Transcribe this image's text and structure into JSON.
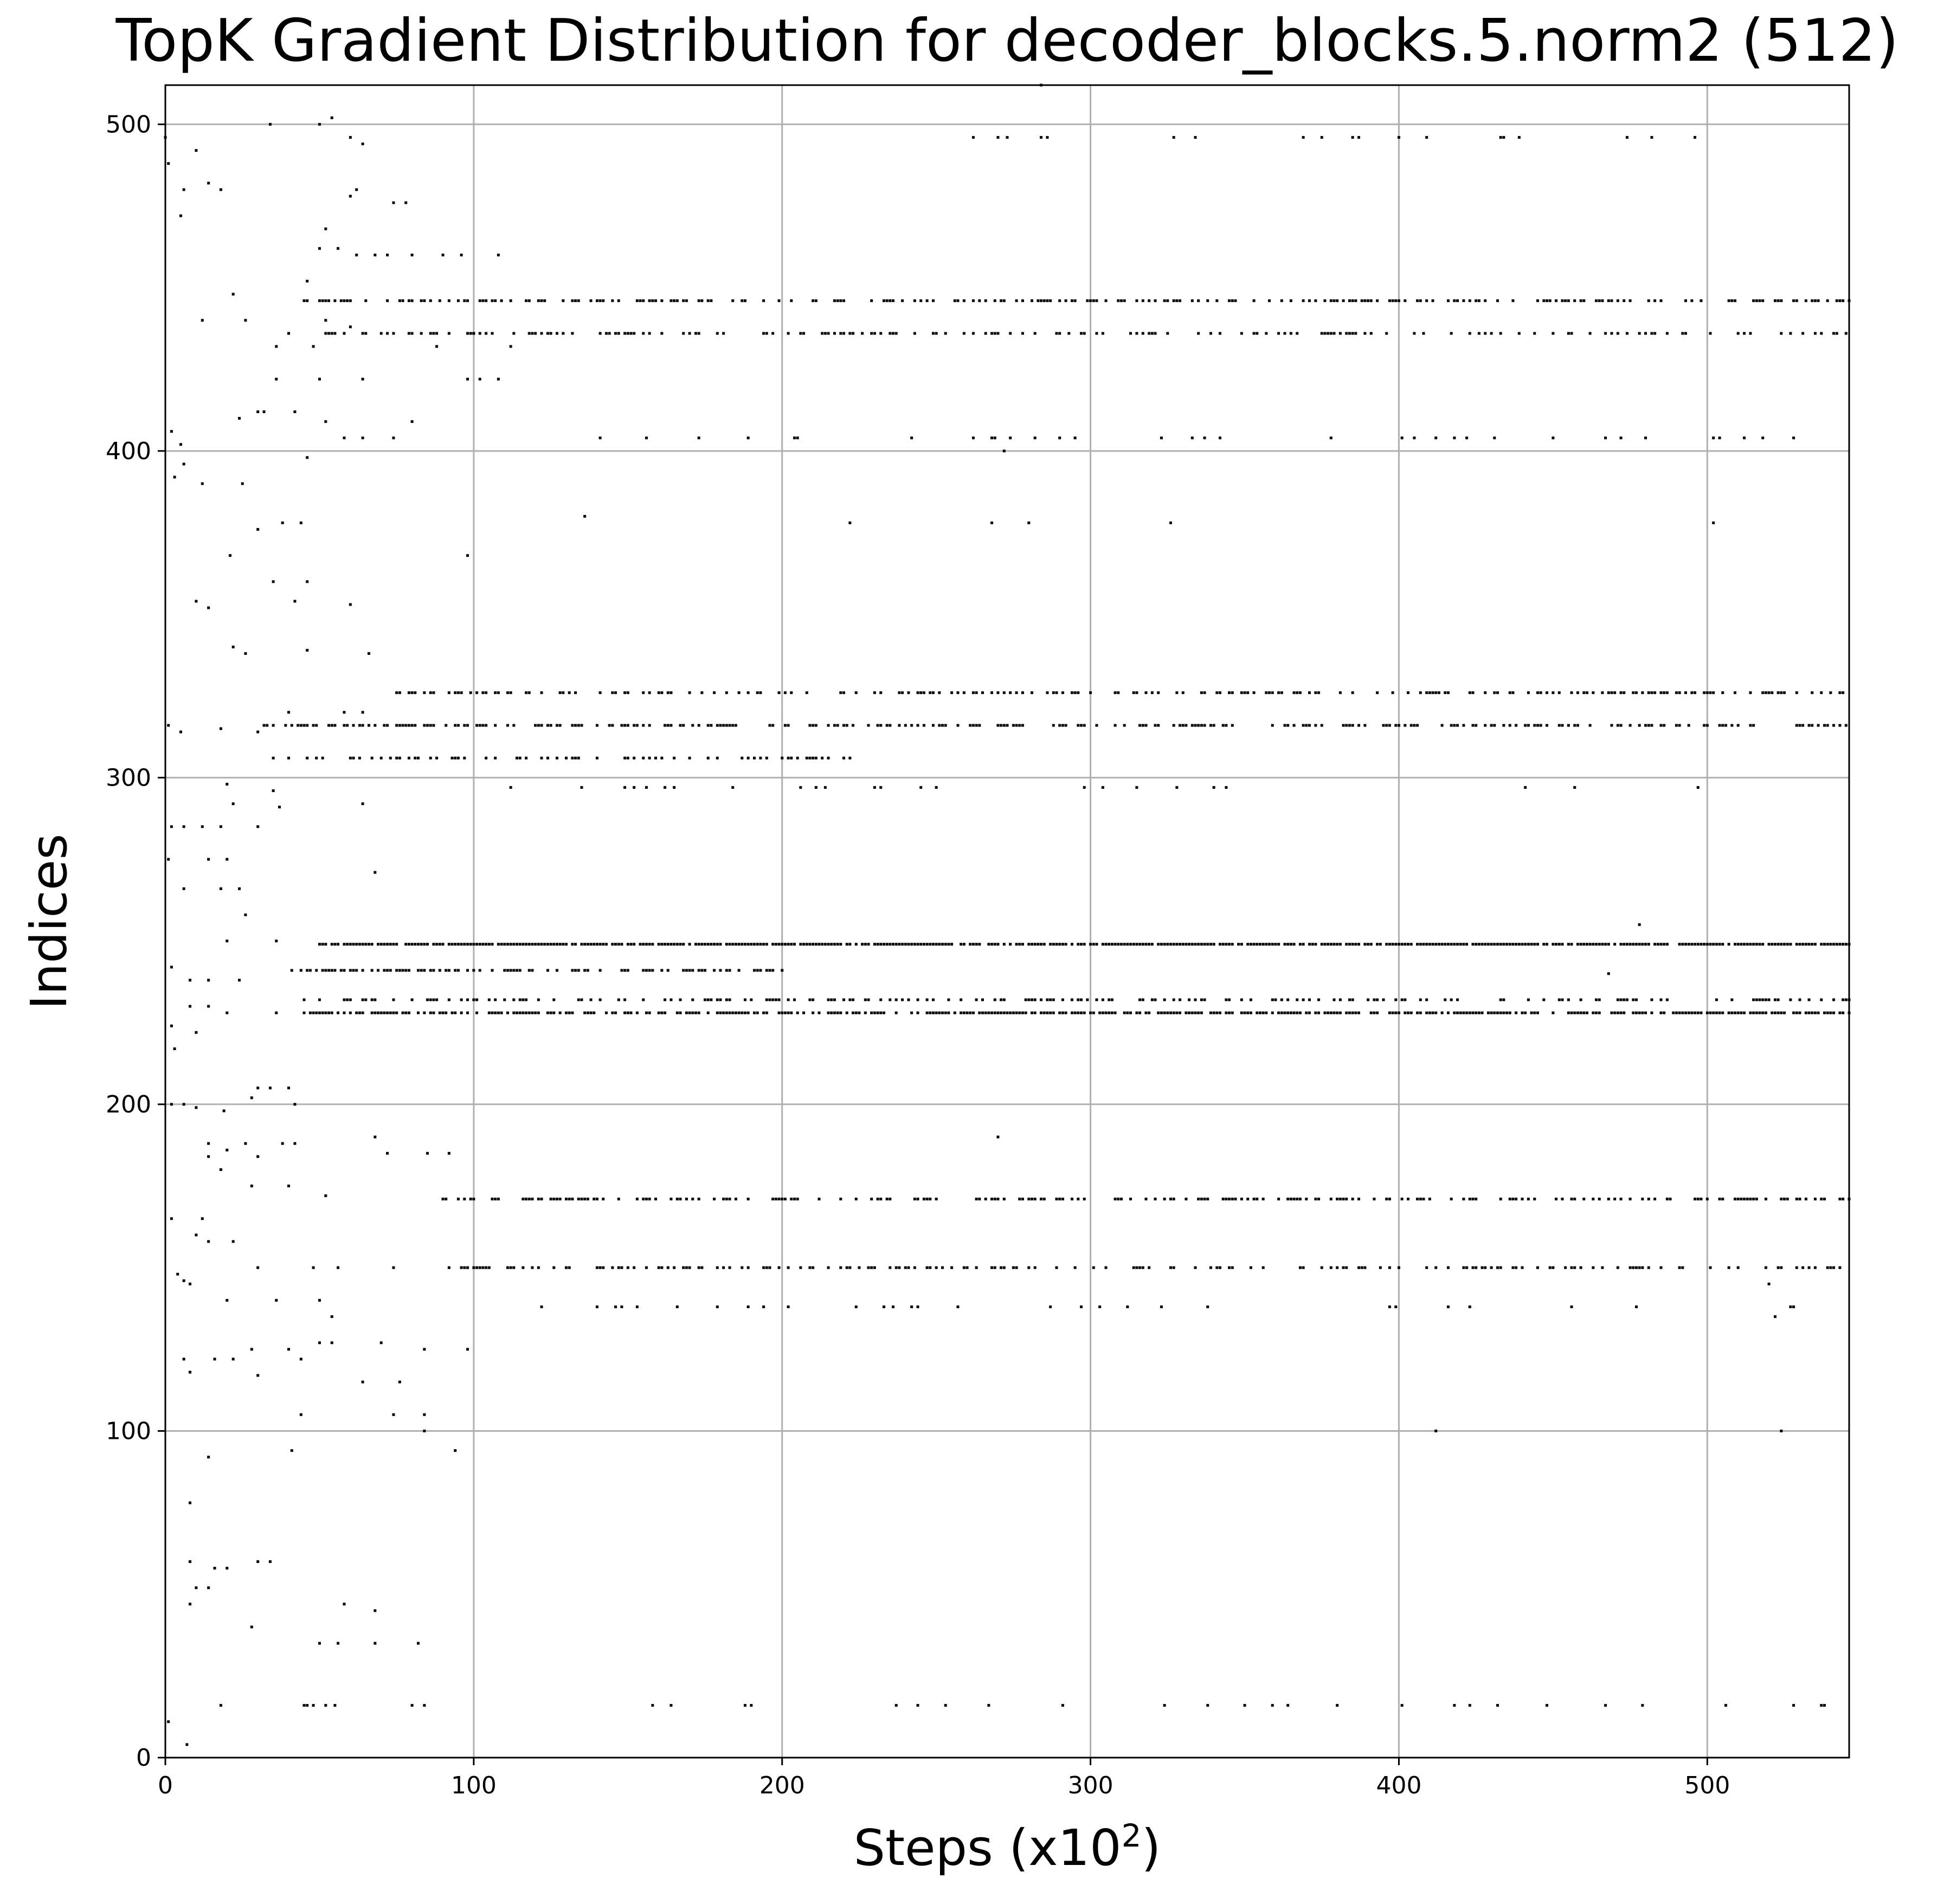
{
  "chart_data": {
    "type": "scatter",
    "title": "TopK Gradient Distribution for decoder_blocks.5.norm2 (512)",
    "xlabel_main": "Steps (x10",
    "xlabel_exp": "2",
    "xlabel_close": ")",
    "ylabel": "Indices",
    "xlim": [
      0,
      546
    ],
    "ylim": [
      0,
      512
    ],
    "xticks": [
      0,
      100,
      200,
      300,
      400,
      500
    ],
    "yticks": [
      0,
      100,
      200,
      300,
      400,
      500
    ],
    "grid": true,
    "marker_color": "#000000",
    "grid_color": "#b0b0b0",
    "bands": [
      {
        "index": 249,
        "x_start": 50,
        "x_end": 546,
        "density": 0.85
      },
      {
        "index": 228,
        "x_start": 45,
        "x_end": 546,
        "density": 0.7
      },
      {
        "index": 232,
        "x_start": 45,
        "x_end": 546,
        "density": 0.35
      },
      {
        "index": 241,
        "x_start": 40,
        "x_end": 200,
        "density": 0.45
      },
      {
        "index": 446,
        "x_start": 45,
        "x_end": 546,
        "density": 0.45
      },
      {
        "index": 436,
        "x_start": 50,
        "x_end": 546,
        "density": 0.35
      },
      {
        "index": 326,
        "x_start": 75,
        "x_end": 546,
        "density": 0.4
      },
      {
        "index": 316,
        "x_start": 30,
        "x_end": 546,
        "density": 0.45
      },
      {
        "index": 306,
        "x_start": 35,
        "x_end": 220,
        "density": 0.3
      },
      {
        "index": 171,
        "x_start": 90,
        "x_end": 546,
        "density": 0.4
      },
      {
        "index": 150,
        "x_start": 90,
        "x_end": 546,
        "density": 0.35
      },
      {
        "index": 404,
        "x_start": 130,
        "x_end": 530,
        "density": 0.06
      },
      {
        "index": 496,
        "x_start": 250,
        "x_end": 540,
        "density": 0.06
      },
      {
        "index": 297,
        "x_start": 110,
        "x_end": 530,
        "density": 0.06
      },
      {
        "index": 138,
        "x_start": 95,
        "x_end": 546,
        "density": 0.05
      },
      {
        "index": 16,
        "x_start": 15,
        "x_end": 540,
        "density": 0.05
      }
    ],
    "points": [
      [
        0,
        496
      ],
      [
        1,
        488
      ],
      [
        6,
        480
      ],
      [
        5,
        472
      ],
      [
        10,
        492
      ],
      [
        14,
        482
      ],
      [
        18,
        480
      ],
      [
        12,
        440
      ],
      [
        22,
        448
      ],
      [
        26,
        440
      ],
      [
        30,
        412
      ],
      [
        24,
        410
      ],
      [
        32,
        412
      ],
      [
        36,
        422
      ],
      [
        40,
        436
      ],
      [
        42,
        412
      ],
      [
        2,
        406
      ],
      [
        5,
        402
      ],
      [
        6,
        396
      ],
      [
        3,
        392
      ],
      [
        12,
        390
      ],
      [
        25,
        390
      ],
      [
        38,
        378
      ],
      [
        44,
        378
      ],
      [
        35,
        360
      ],
      [
        46,
        360
      ],
      [
        30,
        376
      ],
      [
        21,
        368
      ],
      [
        10,
        354
      ],
      [
        14,
        352
      ],
      [
        42,
        354
      ],
      [
        60,
        353
      ],
      [
        46,
        339
      ],
      [
        22,
        340
      ],
      [
        26,
        338
      ],
      [
        66,
        338
      ],
      [
        1,
        316
      ],
      [
        5,
        314
      ],
      [
        18,
        315
      ],
      [
        30,
        314
      ],
      [
        40,
        320
      ],
      [
        44,
        316
      ],
      [
        58,
        320
      ],
      [
        64,
        320
      ],
      [
        60,
        306
      ],
      [
        64,
        316
      ],
      [
        20,
        298
      ],
      [
        35,
        296
      ],
      [
        22,
        292
      ],
      [
        37,
        291
      ],
      [
        64,
        292
      ],
      [
        2,
        285
      ],
      [
        6,
        285
      ],
      [
        12,
        285
      ],
      [
        18,
        285
      ],
      [
        30,
        285
      ],
      [
        1,
        275
      ],
      [
        14,
        275
      ],
      [
        20,
        275
      ],
      [
        68,
        271
      ],
      [
        6,
        266
      ],
      [
        18,
        266
      ],
      [
        24,
        266
      ],
      [
        26,
        258
      ],
      [
        20,
        250
      ],
      [
        36,
        250
      ],
      [
        2,
        242
      ],
      [
        8,
        238
      ],
      [
        14,
        238
      ],
      [
        24,
        238
      ],
      [
        8,
        230
      ],
      [
        14,
        230
      ],
      [
        20,
        228
      ],
      [
        36,
        228
      ],
      [
        2,
        224
      ],
      [
        10,
        222
      ],
      [
        3,
        217
      ],
      [
        2,
        200
      ],
      [
        6,
        200
      ],
      [
        10,
        199
      ],
      [
        19,
        198
      ],
      [
        28,
        202
      ],
      [
        30,
        205
      ],
      [
        34,
        205
      ],
      [
        40,
        205
      ],
      [
        42,
        200
      ],
      [
        14,
        188
      ],
      [
        20,
        186
      ],
      [
        26,
        188
      ],
      [
        38,
        188
      ],
      [
        42,
        188
      ],
      [
        68,
        190
      ],
      [
        72,
        185
      ],
      [
        14,
        184
      ],
      [
        18,
        180
      ],
      [
        30,
        184
      ],
      [
        85,
        185
      ],
      [
        92,
        185
      ],
      [
        28,
        175
      ],
      [
        40,
        175
      ],
      [
        52,
        172
      ],
      [
        2,
        165
      ],
      [
        10,
        160
      ],
      [
        14,
        158
      ],
      [
        22,
        158
      ],
      [
        12,
        165
      ],
      [
        4,
        148
      ],
      [
        6,
        146
      ],
      [
        8,
        145
      ],
      [
        30,
        150
      ],
      [
        48,
        150
      ],
      [
        56,
        150
      ],
      [
        74,
        150
      ],
      [
        36,
        140
      ],
      [
        50,
        140
      ],
      [
        54,
        135
      ],
      [
        20,
        140
      ],
      [
        6,
        122
      ],
      [
        8,
        118
      ],
      [
        16,
        122
      ],
      [
        22,
        122
      ],
      [
        28,
        125
      ],
      [
        30,
        117
      ],
      [
        40,
        125
      ],
      [
        44,
        122
      ],
      [
        50,
        127
      ],
      [
        54,
        127
      ],
      [
        64,
        115
      ],
      [
        70,
        127
      ],
      [
        76,
        115
      ],
      [
        84,
        125
      ],
      [
        98,
        125
      ],
      [
        44,
        105
      ],
      [
        74,
        105
      ],
      [
        84,
        105
      ],
      [
        84,
        100
      ],
      [
        41,
        94
      ],
      [
        94,
        94
      ],
      [
        14,
        92
      ],
      [
        8,
        78
      ],
      [
        8,
        60
      ],
      [
        16,
        58
      ],
      [
        20,
        58
      ],
      [
        30,
        60
      ],
      [
        34,
        60
      ],
      [
        10,
        52
      ],
      [
        14,
        52
      ],
      [
        8,
        47
      ],
      [
        58,
        47
      ],
      [
        68,
        45
      ],
      [
        28,
        40
      ],
      [
        50,
        35
      ],
      [
        56,
        35
      ],
      [
        68,
        35
      ],
      [
        82,
        35
      ],
      [
        18,
        16
      ],
      [
        46,
        16
      ],
      [
        52,
        16
      ],
      [
        80,
        16
      ],
      [
        84,
        16
      ],
      [
        1,
        11
      ],
      [
        7,
        4
      ],
      [
        34,
        500
      ],
      [
        50,
        500
      ],
      [
        54,
        502
      ],
      [
        60,
        496
      ],
      [
        64,
        494
      ],
      [
        60,
        478
      ],
      [
        62,
        480
      ],
      [
        74,
        476
      ],
      [
        78,
        476
      ],
      [
        52,
        468
      ],
      [
        50,
        462
      ],
      [
        56,
        462
      ],
      [
        62,
        460
      ],
      [
        68,
        460
      ],
      [
        72,
        460
      ],
      [
        80,
        460
      ],
      [
        90,
        460
      ],
      [
        96,
        460
      ],
      [
        108,
        460
      ],
      [
        46,
        452
      ],
      [
        52,
        440
      ],
      [
        60,
        438
      ],
      [
        70,
        436
      ],
      [
        86,
        436
      ],
      [
        88,
        432
      ],
      [
        98,
        436
      ],
      [
        100,
        436
      ],
      [
        112,
        432
      ],
      [
        118,
        436
      ],
      [
        48,
        432
      ],
      [
        50,
        422
      ],
      [
        64,
        422
      ],
      [
        98,
        422
      ],
      [
        102,
        422
      ],
      [
        108,
        422
      ],
      [
        52,
        409
      ],
      [
        58,
        404
      ],
      [
        64,
        404
      ],
      [
        74,
        404
      ],
      [
        80,
        409
      ],
      [
        46,
        398
      ],
      [
        36,
        432
      ],
      [
        40,
        436
      ],
      [
        284,
        512
      ],
      [
        270,
        190
      ],
      [
        272,
        400
      ],
      [
        98,
        368
      ],
      [
        136,
        380
      ],
      [
        222,
        378
      ],
      [
        268,
        378
      ],
      [
        280,
        378
      ],
      [
        326,
        378
      ],
      [
        502,
        378
      ],
      [
        478,
        255
      ],
      [
        468,
        240
      ],
      [
        222,
        306
      ],
      [
        520,
        145
      ],
      [
        522,
        135
      ],
      [
        412,
        100
      ],
      [
        524,
        100
      ]
    ]
  }
}
